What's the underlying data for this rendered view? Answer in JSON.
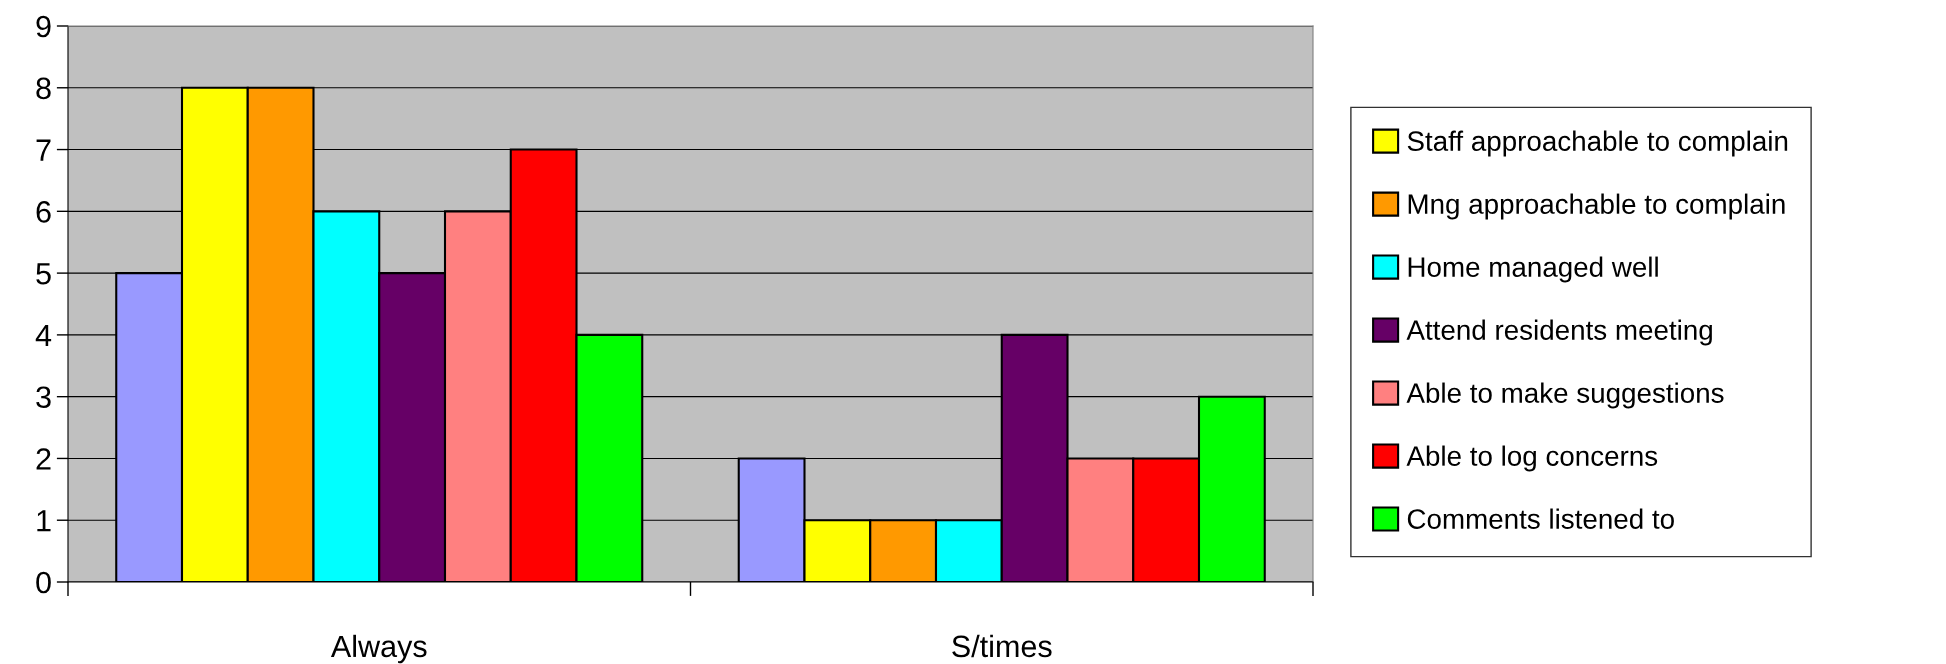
{
  "chart_data": {
    "type": "bar",
    "categories": [
      "Always",
      "S/times"
    ],
    "series": [
      {
        "color": "#9999ff",
        "values": [
          5,
          2
        ]
      },
      {
        "name": "Staff approachable to complain",
        "color": "#ffff00",
        "values": [
          8,
          1
        ]
      },
      {
        "name": "Mng approachable to complain",
        "color": "#ff9900",
        "values": [
          8,
          1
        ]
      },
      {
        "name": "Home managed well",
        "color": "#00ffff",
        "values": [
          6,
          1
        ]
      },
      {
        "name": "Attend residents meeting",
        "color": "#660066",
        "values": [
          5,
          4
        ]
      },
      {
        "name": "Able to make suggestions",
        "color": "#ff8080",
        "values": [
          6,
          2
        ]
      },
      {
        "name": "Able to log concerns",
        "color": "#ff0000",
        "values": [
          7,
          2
        ]
      },
      {
        "name": "Comments listened to",
        "color": "#00ff00",
        "values": [
          4,
          3
        ]
      }
    ],
    "ylim": [
      0,
      9
    ],
    "yticks": [
      0,
      1,
      2,
      3,
      4,
      5,
      6,
      7,
      8,
      9
    ],
    "grid": "y",
    "legend": "right"
  }
}
